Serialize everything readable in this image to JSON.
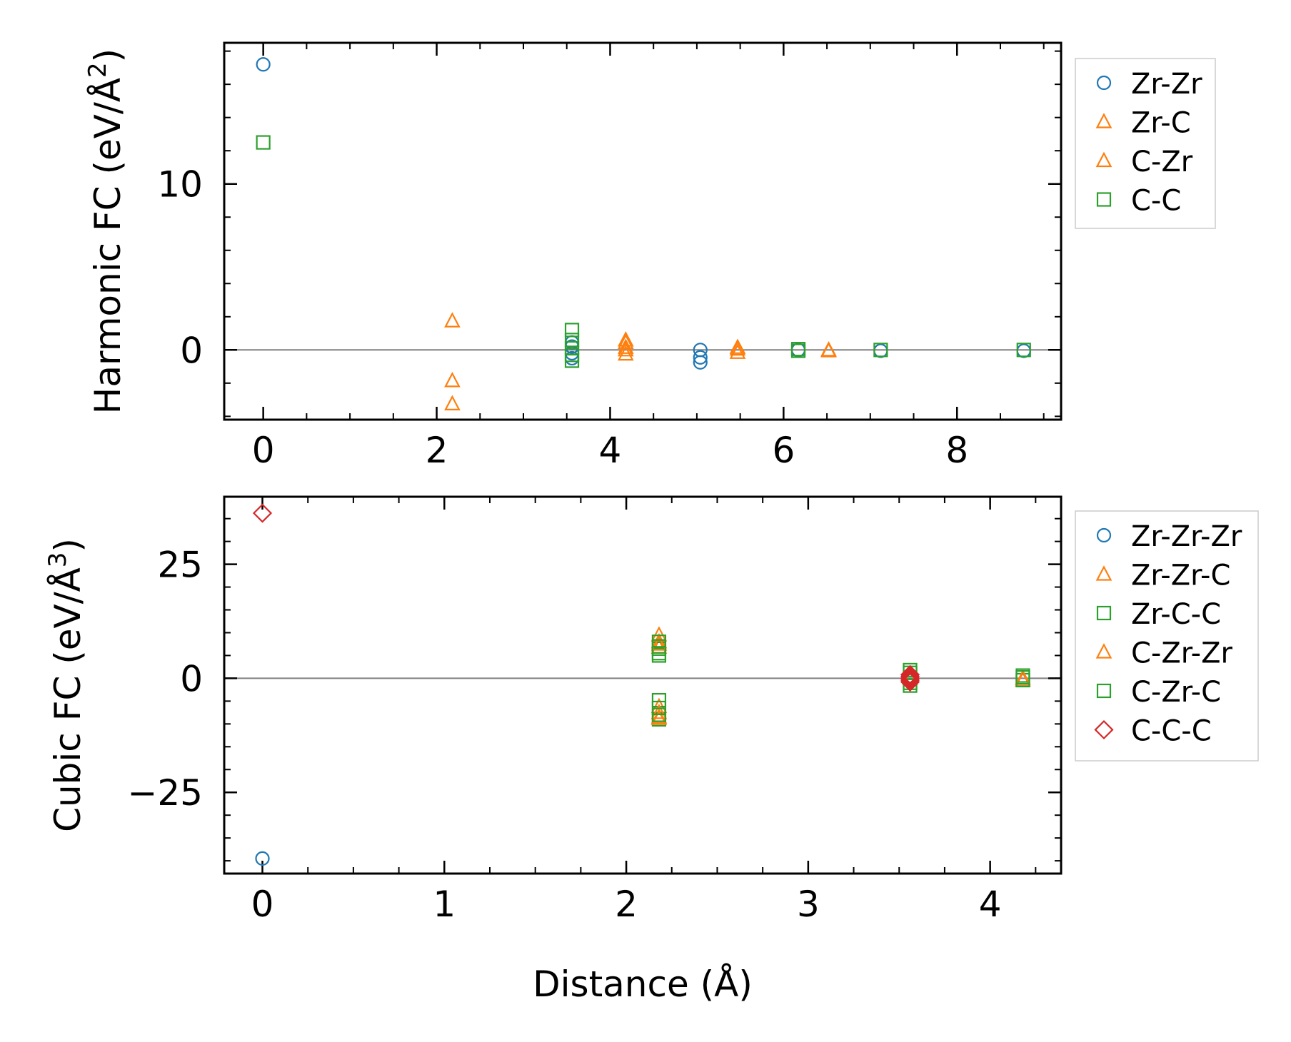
{
  "colors": {
    "blue": "#1f77b4",
    "orange": "#ff7f0e",
    "green": "#2ca02c",
    "red": "#d62728",
    "zero_line": "#808080"
  },
  "chart_data": [
    {
      "type": "scatter",
      "id": "harmonic",
      "title": "",
      "xlabel": "",
      "ylabel": "Harmonic FC (eV/Å²)",
      "ylabel_main": "Harmonic FC (eV/Å",
      "ylabel_sup": "2",
      "ylabel_close": ")",
      "xlim": [
        -0.45,
        9.2
      ],
      "ylim": [
        -4.2,
        18.5
      ],
      "xticks": [
        0,
        2,
        4,
        6,
        8
      ],
      "xtick_labels": [
        "0",
        "2",
        "4",
        "6",
        "8"
      ],
      "xminor_step": 0.5,
      "yticks": [
        0,
        10
      ],
      "ytick_labels": [
        "0",
        "10"
      ],
      "yminor_step": 2,
      "zero_line": true,
      "legend_position": "outside-right-top",
      "series": [
        {
          "name": "Zr-Zr",
          "marker": "circle",
          "color": "blue",
          "x": [
            0,
            3.56,
            3.56,
            3.56,
            3.56,
            5.04,
            5.04,
            5.04,
            6.17,
            7.12,
            8.77
          ],
          "y": [
            17.2,
            0.45,
            0.2,
            -0.2,
            -0.5,
            0.0,
            -0.45,
            -0.75,
            0.0,
            -0.05,
            -0.05
          ]
        },
        {
          "name": "Zr-C",
          "marker": "triangle",
          "color": "orange",
          "x": [
            2.18,
            2.18,
            2.18,
            4.18,
            4.18,
            4.18,
            5.47,
            5.47,
            6.52
          ],
          "y": [
            1.75,
            -1.85,
            -3.25,
            0.45,
            0.15,
            -0.25,
            0.15,
            -0.15,
            -0.05
          ]
        },
        {
          "name": "C-Zr",
          "marker": "triangle",
          "color": "orange",
          "x": [
            4.18,
            4.18,
            5.47,
            6.52
          ],
          "y": [
            0.6,
            0.0,
            0.05,
            0.0
          ]
        },
        {
          "name": "C-C",
          "marker": "square",
          "color": "green",
          "x": [
            0,
            3.56,
            3.56,
            3.56,
            3.56,
            3.56,
            6.17,
            6.17,
            7.12,
            8.77
          ],
          "y": [
            12.5,
            1.2,
            0.6,
            0.1,
            -0.3,
            -0.65,
            0.05,
            -0.05,
            0.0,
            0.0
          ]
        }
      ]
    },
    {
      "type": "scatter",
      "id": "cubic",
      "title": "",
      "xlabel": "Distance (Å)",
      "ylabel": "Cubic FC (eV/Å³)",
      "ylabel_main": "Cubic FC (eV/Å",
      "ylabel_sup": "3",
      "ylabel_close": ")",
      "xlim": [
        -0.21,
        4.39
      ],
      "ylim": [
        -42.8,
        39.8
      ],
      "xticks": [
        0,
        1,
        2,
        3,
        4
      ],
      "xtick_labels": [
        "0",
        "1",
        "2",
        "3",
        "4"
      ],
      "xminor_step": 0.25,
      "yticks": [
        -25,
        0,
        25
      ],
      "ytick_labels": [
        "−25",
        "0",
        "25"
      ],
      "yminor_step": 5,
      "zero_line": true,
      "legend_position": "outside-right-top",
      "series": [
        {
          "name": "Zr-Zr-Zr",
          "marker": "circle",
          "color": "blue",
          "x": [
            0,
            3.56,
            3.56
          ],
          "y": [
            -39.5,
            0.5,
            -0.5
          ]
        },
        {
          "name": "Zr-Zr-C",
          "marker": "triangle",
          "color": "orange",
          "x": [
            2.18,
            2.18,
            2.18,
            2.18,
            2.18,
            3.56,
            4.18
          ],
          "y": [
            9.5,
            8.0,
            6.8,
            -6.2,
            -8.5,
            0.3,
            -0.4
          ]
        },
        {
          "name": "Zr-C-C",
          "marker": "square",
          "color": "green",
          "x": [
            2.18,
            2.18,
            2.18,
            2.18,
            2.18,
            3.56,
            3.56,
            4.18,
            4.18
          ],
          "y": [
            8.0,
            6.5,
            5.0,
            -4.8,
            -9.0,
            1.2,
            -1.0,
            0.6,
            -0.4
          ]
        },
        {
          "name": "C-Zr-Zr",
          "marker": "triangle",
          "color": "orange",
          "x": [
            2.18,
            2.18,
            2.18,
            3.56,
            4.18
          ],
          "y": [
            7.5,
            -7.5,
            -8.8,
            0.0,
            0.0
          ]
        },
        {
          "name": "C-Zr-C",
          "marker": "square",
          "color": "green",
          "x": [
            2.18,
            2.18,
            2.18,
            2.18,
            3.56,
            3.56,
            4.18
          ],
          "y": [
            7.0,
            5.5,
            -6.5,
            -8.0,
            1.8,
            -1.6,
            0.2
          ]
        },
        {
          "name": "C-C-C",
          "marker": "diamond",
          "color": "red",
          "x": [
            0,
            3.56,
            3.56,
            3.56,
            3.56,
            3.56
          ],
          "y": [
            36.2,
            0.8,
            0.4,
            0.0,
            -0.4,
            -0.8
          ]
        }
      ]
    }
  ]
}
